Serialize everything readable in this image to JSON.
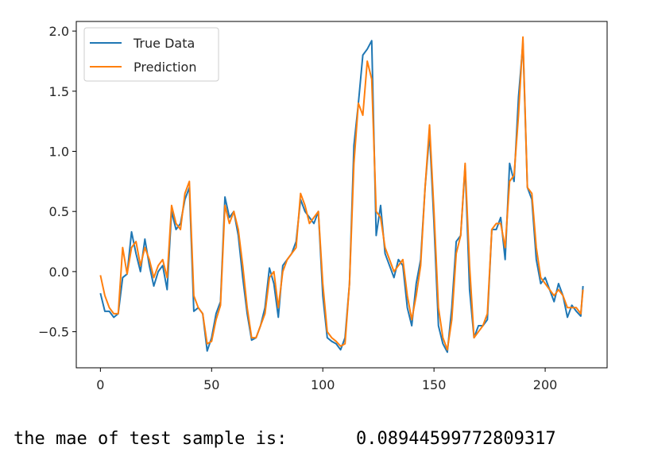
{
  "chart_data": {
    "type": "line",
    "x": [
      0,
      2,
      4,
      6,
      8,
      10,
      12,
      14,
      16,
      18,
      20,
      22,
      24,
      26,
      28,
      30,
      32,
      34,
      36,
      38,
      40,
      42,
      44,
      46,
      48,
      50,
      52,
      54,
      56,
      58,
      60,
      62,
      64,
      66,
      68,
      70,
      72,
      74,
      76,
      78,
      80,
      82,
      84,
      86,
      88,
      90,
      92,
      94,
      96,
      98,
      100,
      102,
      104,
      106,
      108,
      110,
      112,
      114,
      116,
      118,
      120,
      122,
      124,
      126,
      128,
      130,
      132,
      134,
      136,
      138,
      140,
      142,
      144,
      146,
      148,
      150,
      152,
      154,
      156,
      158,
      160,
      162,
      164,
      166,
      168,
      170,
      172,
      174,
      176,
      178,
      180,
      182,
      184,
      186,
      188,
      190,
      192,
      194,
      196,
      198,
      200,
      202,
      204,
      206,
      208,
      210,
      212,
      214,
      216,
      217
    ],
    "series": [
      {
        "name": "True Data",
        "color": "#1f77b4",
        "values": [
          -0.18,
          -0.33,
          -0.33,
          -0.38,
          -0.35,
          -0.05,
          -0.02,
          0.33,
          0.15,
          0.0,
          0.27,
          0.05,
          -0.12,
          0.0,
          0.05,
          -0.15,
          0.5,
          0.35,
          0.4,
          0.6,
          0.7,
          -0.33,
          -0.3,
          -0.35,
          -0.66,
          -0.55,
          -0.35,
          -0.25,
          0.62,
          0.45,
          0.5,
          0.3,
          -0.05,
          -0.35,
          -0.57,
          -0.55,
          -0.45,
          -0.3,
          0.03,
          -0.1,
          -0.38,
          0.05,
          0.1,
          0.15,
          0.25,
          0.6,
          0.5,
          0.45,
          0.4,
          0.5,
          -0.2,
          -0.55,
          -0.58,
          -0.6,
          -0.65,
          -0.55,
          -0.1,
          1.05,
          1.4,
          1.8,
          1.85,
          1.92,
          0.3,
          0.55,
          0.15,
          0.05,
          -0.05,
          0.1,
          0.05,
          -0.3,
          -0.45,
          -0.1,
          0.1,
          0.7,
          1.15,
          0.4,
          -0.45,
          -0.6,
          -0.67,
          -0.3,
          0.25,
          0.3,
          0.88,
          -0.15,
          -0.55,
          -0.45,
          -0.45,
          -0.4,
          0.35,
          0.35,
          0.45,
          0.1,
          0.9,
          0.75,
          1.45,
          1.9,
          0.7,
          0.6,
          0.1,
          -0.1,
          -0.05,
          -0.15,
          -0.25,
          -0.1,
          -0.2,
          -0.38,
          -0.28,
          -0.33,
          -0.37,
          -0.12
        ]
      },
      {
        "name": "Prediction",
        "color": "#ff7f0e",
        "values": [
          -0.03,
          -0.2,
          -0.3,
          -0.35,
          -0.35,
          0.2,
          -0.02,
          0.2,
          0.25,
          0.05,
          0.2,
          0.1,
          -0.05,
          0.05,
          0.1,
          -0.05,
          0.55,
          0.4,
          0.35,
          0.65,
          0.75,
          -0.2,
          -0.3,
          -0.35,
          -0.6,
          -0.58,
          -0.4,
          -0.28,
          0.55,
          0.4,
          0.5,
          0.35,
          0.05,
          -0.3,
          -0.55,
          -0.55,
          -0.45,
          -0.35,
          -0.05,
          0.0,
          -0.3,
          0.0,
          0.1,
          0.15,
          0.2,
          0.65,
          0.55,
          0.4,
          0.45,
          0.5,
          -0.1,
          -0.5,
          -0.55,
          -0.58,
          -0.62,
          -0.6,
          -0.1,
          0.9,
          1.4,
          1.3,
          1.75,
          1.6,
          0.5,
          0.45,
          0.2,
          0.1,
          0.0,
          0.05,
          0.1,
          -0.2,
          -0.4,
          -0.2,
          0.05,
          0.7,
          1.22,
          0.5,
          -0.3,
          -0.55,
          -0.65,
          -0.4,
          0.15,
          0.3,
          0.9,
          0.05,
          -0.55,
          -0.5,
          -0.45,
          -0.35,
          0.35,
          0.4,
          0.4,
          0.2,
          0.75,
          0.8,
          1.3,
          1.95,
          0.7,
          0.65,
          0.2,
          -0.05,
          -0.1,
          -0.15,
          -0.2,
          -0.15,
          -0.2,
          -0.3,
          -0.3,
          -0.3,
          -0.35,
          -0.15
        ]
      }
    ],
    "xlim": [
      -10.85,
      227.85
    ],
    "ylim": [
      -0.8,
      2.08
    ],
    "xticks": [
      0,
      50,
      100,
      150,
      200
    ],
    "yticks": [
      {
        "value": -0.5,
        "label": "−0.5"
      },
      {
        "value": 0,
        "label": "0.0"
      },
      0.5,
      {
        "value": 1,
        "label": "1.0"
      },
      1.5,
      {
        "value": 2,
        "label": "2.0"
      }
    ],
    "legend": "upper left"
  },
  "output": {
    "label": "the mae of test sample is:",
    "value": 0.08944599772809317
  }
}
